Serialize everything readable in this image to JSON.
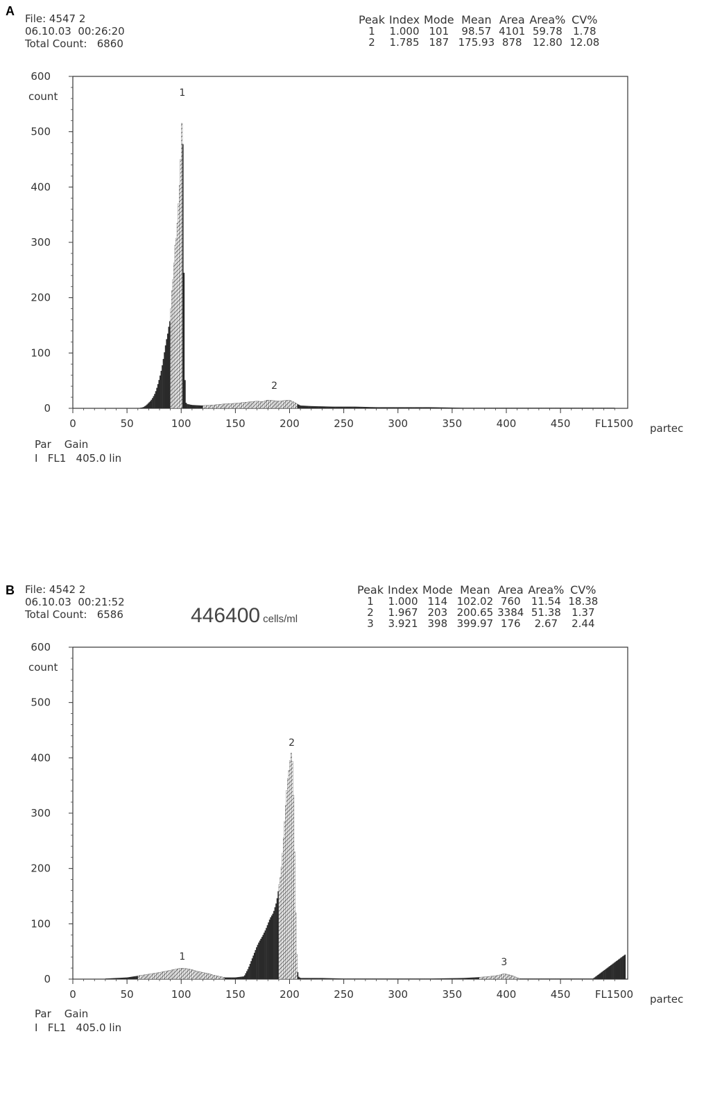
{
  "panels": [
    {
      "letter": "A",
      "file": "File: 4547 2",
      "datetime": "06.10.03  00:26:20",
      "total_count": "Total Count:   6860",
      "cells": "",
      "cells_unit": "",
      "table": {
        "headers": [
          "Peak",
          "Index",
          "Mode",
          "Mean",
          "Area",
          "Area%",
          "CV%"
        ],
        "rows": [
          [
            "1",
            "1.000",
            "101",
            "98.57",
            "4101",
            "59.78",
            "1.78"
          ],
          [
            "2",
            "1.785",
            "187",
            "175.93",
            "878",
            "12.80",
            "12.08"
          ]
        ]
      },
      "ylabel": "count",
      "xlabel": "FL1",
      "brand": "partec",
      "footer": {
        "head": "Par    Gain",
        "row": "I   FL1   405.0 lin"
      }
    },
    {
      "letter": "B",
      "file": "File: 4542 2",
      "datetime": "06.10.03  00:21:52",
      "total_count": "Total Count:   6586",
      "cells": "446400",
      "cells_unit": "cells/ml",
      "table": {
        "headers": [
          "Peak",
          "Index",
          "Mode",
          "Mean",
          "Area",
          "Area%",
          "CV%"
        ],
        "rows": [
          [
            "1",
            "1.000",
            "114",
            "102.02",
            "760",
            "11.54",
            "18.38"
          ],
          [
            "2",
            "1.967",
            "203",
            "200.65",
            "3384",
            "51.38",
            "1.37"
          ],
          [
            "3",
            "3.921",
            "398",
            "399.97",
            "176",
            "2.67",
            "2.44"
          ]
        ]
      },
      "ylabel": "count",
      "xlabel": "FL1",
      "brand": "partec",
      "footer": {
        "head": "Par    Gain",
        "row": "I   FL1   405.0 lin"
      }
    }
  ],
  "chart_data": [
    {
      "type": "bar",
      "title": "",
      "xlabel": "FL1",
      "ylabel": "count",
      "xlim": [
        0,
        512
      ],
      "ylim": [
        0,
        600
      ],
      "xticks": [
        0,
        50,
        100,
        150,
        200,
        250,
        300,
        350,
        400,
        450
      ],
      "x_end_label": "500",
      "yticks": [
        0,
        100,
        200,
        300,
        400,
        500,
        600
      ],
      "peak_labels": [
        {
          "label": "1",
          "x": 101,
          "y": 555
        },
        {
          "label": "2",
          "x": 186,
          "y": 25
        }
      ],
      "regions": [
        {
          "peak": "1",
          "from": 90,
          "to": 101
        },
        {
          "peak": "2",
          "from": 120,
          "to": 207
        }
      ],
      "points": [
        [
          60,
          0
        ],
        [
          65,
          2
        ],
        [
          68,
          6
        ],
        [
          70,
          10
        ],
        [
          72,
          14
        ],
        [
          74,
          20
        ],
        [
          76,
          28
        ],
        [
          78,
          40
        ],
        [
          80,
          55
        ],
        [
          82,
          72
        ],
        [
          84,
          95
        ],
        [
          86,
          120
        ],
        [
          88,
          140
        ],
        [
          89,
          155
        ],
        [
          90,
          160
        ],
        [
          91,
          200
        ],
        [
          92,
          225
        ],
        [
          93,
          240
        ],
        [
          94,
          285
        ],
        [
          95,
          305
        ],
        [
          96,
          310
        ],
        [
          97,
          360
        ],
        [
          98,
          380
        ],
        [
          99,
          425
        ],
        [
          100,
          475
        ],
        [
          101,
          555
        ],
        [
          102,
          400
        ],
        [
          103,
          90
        ],
        [
          104,
          12
        ],
        [
          105,
          8
        ],
        [
          110,
          6
        ],
        [
          120,
          5
        ],
        [
          130,
          6
        ],
        [
          140,
          8
        ],
        [
          150,
          9
        ],
        [
          160,
          11
        ],
        [
          165,
          12
        ],
        [
          170,
          13
        ],
        [
          175,
          12
        ],
        [
          180,
          15
        ],
        [
          185,
          14
        ],
        [
          190,
          13
        ],
        [
          195,
          14
        ],
        [
          200,
          15
        ],
        [
          205,
          10
        ],
        [
          210,
          5
        ],
        [
          220,
          4
        ],
        [
          240,
          3
        ],
        [
          260,
          3
        ],
        [
          280,
          2
        ],
        [
          300,
          2
        ],
        [
          330,
          2
        ],
        [
          360,
          1
        ],
        [
          400,
          1
        ],
        [
          450,
          1
        ],
        [
          500,
          1
        ]
      ]
    },
    {
      "type": "bar",
      "title": "",
      "xlabel": "FL1",
      "ylabel": "count",
      "xlim": [
        0,
        512
      ],
      "ylim": [
        0,
        600
      ],
      "xticks": [
        0,
        50,
        100,
        150,
        200,
        250,
        300,
        350,
        400,
        450
      ],
      "x_end_label": "500",
      "yticks": [
        0,
        100,
        200,
        300,
        400,
        500,
        600
      ],
      "peak_labels": [
        {
          "label": "1",
          "x": 101,
          "y": 25
        },
        {
          "label": "2",
          "x": 202,
          "y": 412
        },
        {
          "label": "3",
          "x": 398,
          "y": 15
        }
      ],
      "regions": [
        {
          "peak": "1",
          "from": 60,
          "to": 140
        },
        {
          "peak": "2",
          "from": 190,
          "to": 207
        },
        {
          "peak": "3",
          "from": 375,
          "to": 412
        }
      ],
      "points": [
        [
          30,
          1
        ],
        [
          40,
          2
        ],
        [
          50,
          3
        ],
        [
          60,
          6
        ],
        [
          70,
          9
        ],
        [
          80,
          12
        ],
        [
          90,
          16
        ],
        [
          95,
          18
        ],
        [
          100,
          20
        ],
        [
          105,
          19
        ],
        [
          110,
          17
        ],
        [
          115,
          14
        ],
        [
          120,
          12
        ],
        [
          125,
          10
        ],
        [
          130,
          7
        ],
        [
          135,
          5
        ],
        [
          140,
          3
        ],
        [
          150,
          3
        ],
        [
          158,
          5
        ],
        [
          162,
          20
        ],
        [
          165,
          35
        ],
        [
          168,
          50
        ],
        [
          170,
          60
        ],
        [
          172,
          68
        ],
        [
          175,
          78
        ],
        [
          178,
          90
        ],
        [
          180,
          100
        ],
        [
          182,
          110
        ],
        [
          185,
          120
        ],
        [
          188,
          140
        ],
        [
          190,
          165
        ],
        [
          192,
          190
        ],
        [
          194,
          240
        ],
        [
          196,
          300
        ],
        [
          198,
          355
        ],
        [
          200,
          385
        ],
        [
          201,
          405
        ],
        [
          202,
          412
        ],
        [
          203,
          375
        ],
        [
          204,
          290
        ],
        [
          205,
          170
        ],
        [
          206,
          70
        ],
        [
          207,
          20
        ],
        [
          208,
          5
        ],
        [
          210,
          2
        ],
        [
          230,
          2
        ],
        [
          250,
          1
        ],
        [
          270,
          1
        ],
        [
          300,
          1
        ],
        [
          330,
          1
        ],
        [
          360,
          2
        ],
        [
          380,
          4
        ],
        [
          390,
          6
        ],
        [
          395,
          8
        ],
        [
          398,
          10
        ],
        [
          402,
          8
        ],
        [
          407,
          5
        ],
        [
          412,
          1
        ],
        [
          450,
          1
        ],
        [
          480,
          1
        ],
        [
          510,
          45
        ]
      ]
    }
  ]
}
